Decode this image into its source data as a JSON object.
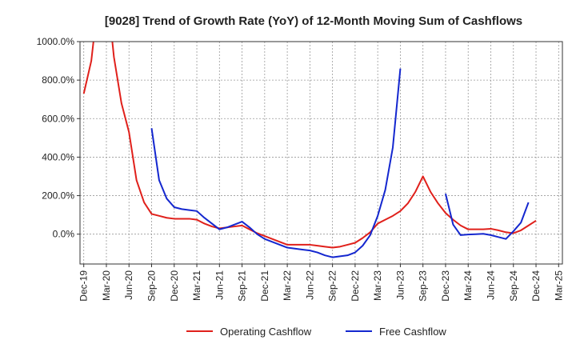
{
  "chart_data": {
    "type": "line",
    "title": "[9028]  Trend of Growth Rate (YoY) of 12-Month Moving Sum of Cashflows",
    "x": [
      "Dec-19",
      "Jan-20",
      "Feb-20",
      "Mar-20",
      "Apr-20",
      "May-20",
      "Jun-20",
      "Jul-20",
      "Aug-20",
      "Sep-20",
      "Oct-20",
      "Nov-20",
      "Dec-20",
      "Jan-21",
      "Feb-21",
      "Mar-21",
      "Apr-21",
      "May-21",
      "Jun-21",
      "Jul-21",
      "Aug-21",
      "Sep-21",
      "Oct-21",
      "Nov-21",
      "Dec-21",
      "Jan-22",
      "Feb-22",
      "Mar-22",
      "Apr-22",
      "May-22",
      "Jun-22",
      "Jul-22",
      "Aug-22",
      "Sep-22",
      "Oct-22",
      "Nov-22",
      "Dec-22",
      "Jan-23",
      "Feb-23",
      "Mar-23",
      "Apr-23",
      "May-23",
      "Jun-23",
      "Jul-23",
      "Aug-23",
      "Sep-23",
      "Oct-23",
      "Nov-23",
      "Dec-23",
      "Jan-24",
      "Feb-24",
      "Mar-24",
      "Apr-24",
      "May-24",
      "Jun-24",
      "Jul-24",
      "Aug-24",
      "Sep-24",
      "Oct-24",
      "Nov-24",
      "Dec-24",
      "Jan-25",
      "Feb-25",
      "Mar-25"
    ],
    "x_tick_labels": [
      "Dec-19",
      "Mar-20",
      "Jun-20",
      "Sep-20",
      "Dec-20",
      "Mar-21",
      "Jun-21",
      "Sep-21",
      "Dec-21",
      "Mar-22",
      "Jun-22",
      "Sep-22",
      "Dec-22",
      "Mar-23",
      "Jun-23",
      "Sep-23",
      "Dec-23",
      "Mar-24",
      "Jun-24",
      "Sep-24",
      "Dec-24",
      "Mar-25"
    ],
    "y_tick_labels": [
      "0.0%",
      "200.0%",
      "400.0%",
      "600.0%",
      "800.0%",
      "1000.0%"
    ],
    "y_ticks": [
      0,
      200,
      400,
      600,
      800,
      1000
    ],
    "ylim": [
      -155,
      1000
    ],
    "xlabel": "",
    "ylabel": "",
    "grid": true,
    "legend_position": "bottom",
    "series": [
      {
        "name": "Operating Cashflow",
        "color": "#e0201b",
        "values": [
          730,
          900,
          1250,
          1300,
          920,
          680,
          530,
          280,
          165,
          105,
          95,
          85,
          80,
          80,
          80,
          75,
          55,
          40,
          30,
          35,
          40,
          45,
          25,
          5,
          -10,
          -25,
          -40,
          -55,
          -55,
          -55,
          -55,
          -60,
          -65,
          -70,
          -65,
          -55,
          -45,
          -20,
          10,
          55,
          75,
          95,
          120,
          160,
          220,
          300,
          220,
          160,
          110,
          75,
          45,
          25,
          25,
          25,
          28,
          20,
          10,
          5,
          20,
          45,
          70,
          null,
          null,
          null
        ]
      },
      {
        "name": "Free Cashflow",
        "color": "#1427cf",
        "values": [
          null,
          null,
          null,
          null,
          null,
          null,
          null,
          null,
          null,
          550,
          280,
          185,
          140,
          130,
          125,
          120,
          85,
          55,
          25,
          35,
          50,
          65,
          35,
          0,
          -25,
          -40,
          -55,
          -70,
          -75,
          -80,
          -85,
          -95,
          -110,
          -120,
          -115,
          -110,
          -95,
          -60,
          -5,
          95,
          230,
          450,
          860,
          null,
          null,
          null,
          null,
          null,
          210,
          50,
          -5,
          -2,
          0,
          2,
          -5,
          -15,
          -25,
          15,
          60,
          165,
          null,
          null,
          null,
          null
        ]
      }
    ]
  }
}
